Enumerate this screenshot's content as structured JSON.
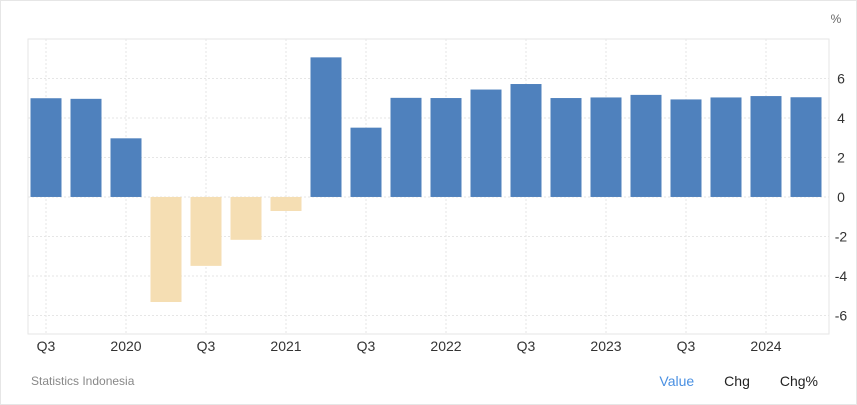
{
  "chart_data": {
    "type": "bar",
    "unit_label": "%",
    "categories": [
      "Q3 2019",
      "Q4 2019",
      "Q1 2020",
      "Q2 2020",
      "Q3 2020",
      "Q4 2020",
      "Q1 2021",
      "Q2 2021",
      "Q3 2021",
      "Q4 2021",
      "Q1 2022",
      "Q2 2022",
      "Q3 2022",
      "Q4 2022",
      "Q1 2023",
      "Q2 2023",
      "Q3 2023",
      "Q4 2023",
      "Q1 2024",
      "Q2 2024"
    ],
    "values": [
      5.0,
      4.97,
      2.97,
      -5.32,
      -3.49,
      -2.17,
      -0.71,
      7.07,
      3.51,
      5.02,
      5.01,
      5.44,
      5.72,
      5.01,
      5.04,
      5.17,
      4.94,
      5.04,
      5.11,
      5.05
    ],
    "x_tick_labels": [
      "Q3",
      "2020",
      "Q3",
      "2021",
      "Q3",
      "2022",
      "Q3",
      "2023",
      "Q3",
      "2024"
    ],
    "y_ticks": [
      6,
      4,
      2,
      0,
      -2,
      -4,
      -6
    ],
    "ylim": [
      -6.94,
      8
    ],
    "colors": {
      "positive": "#4f81bd",
      "negative": "#f5deb3"
    },
    "grid": true
  },
  "footer": {
    "source": "Statistics Indonesia",
    "buttons": [
      "Value",
      "Chg",
      "Chg%"
    ]
  }
}
